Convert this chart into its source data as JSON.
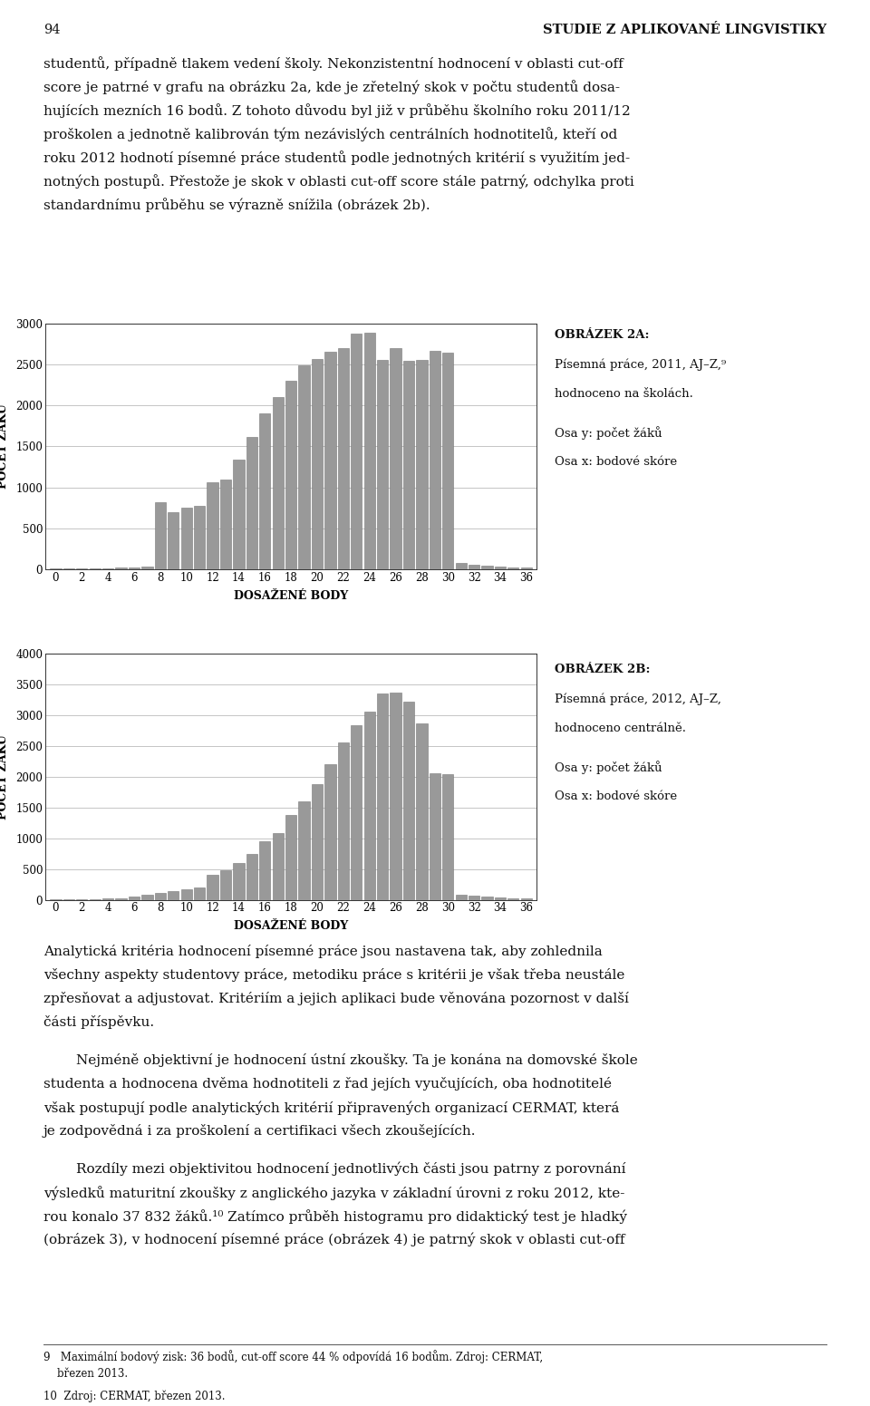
{
  "page_number": "94",
  "page_header": "STUDIE Z APLIKOVANÉ LINGVISTIKY",
  "para1": [
    "studentů, případně tlakem vedení školy. Nekonzistentní hodnocení v oblasti cut-off",
    "score je patrné v grafu na obrázku 2a, kde je zřetelný skok v počtu studentů dosa-",
    "hujících mezních 16 bodů. Z tohoto důvodu byl již v průběhu školního roku 2011/12",
    "proškolen a jednotně kalibrován tým nezávislých centrálních hodnotitelů, kteří od",
    "roku 2012 hodnotí písemné práce studentů podle jednotných kritérií s využitím jed-",
    "notných postupů. Přestože je skok v oblasti cut-off score stále patrný, odchylka proti",
    "standardnímu průběhu se výrazně snížila (obrázek 2b)."
  ],
  "chart1_label_bold": "OBRÁZEK 2A:",
  "chart1_label_lines": [
    "Písemná práce, 2011, AJ–Z,⁹",
    "hodnoceno na školách.",
    "Osa y: počet žáků",
    "Osa x: bodové skóre"
  ],
  "chart1_ylabel": "POČET ŽÁKŮ",
  "chart1_xlabel": "DOSAŽENÉ BODY",
  "chart1_ylim": [
    0,
    3000
  ],
  "chart1_yticks": [
    0,
    500,
    1000,
    1500,
    2000,
    2500,
    3000
  ],
  "chart1_xticks": [
    0,
    2,
    4,
    6,
    8,
    10,
    12,
    14,
    16,
    18,
    20,
    22,
    24,
    26,
    28,
    30,
    32,
    34,
    36
  ],
  "chart1_values": [
    8,
    8,
    8,
    12,
    18,
    22,
    28,
    38,
    820,
    700,
    755,
    780,
    1060,
    1100,
    1340,
    1620,
    1900,
    2100,
    2300,
    2490,
    2570,
    2650,
    2700,
    2870,
    2890,
    2550,
    2700,
    2545,
    2550,
    2660,
    2640,
    82,
    60,
    50,
    40,
    28,
    22
  ],
  "chart2_label_bold": "OBRÁZEK 2B:",
  "chart2_label_lines": [
    "Písemná práce, 2012, AJ–Z,",
    "hodnoceno centrálně.",
    "Osa y: počet žáků",
    "Osa x: bodové skóre"
  ],
  "chart2_ylabel": "POČET ŽÁKŮ",
  "chart2_xlabel": "DOSAŽENÉ BODY",
  "chart2_ylim": [
    0,
    4000
  ],
  "chart2_yticks": [
    0,
    500,
    1000,
    1500,
    2000,
    2500,
    3000,
    3500,
    4000
  ],
  "chart2_xticks": [
    0,
    2,
    4,
    6,
    8,
    10,
    12,
    14,
    16,
    18,
    20,
    22,
    24,
    26,
    28,
    30,
    32,
    34,
    36
  ],
  "chart2_values": [
    8,
    8,
    8,
    12,
    18,
    28,
    48,
    78,
    118,
    148,
    175,
    198,
    405,
    478,
    598,
    748,
    948,
    1078,
    1375,
    1598,
    1878,
    2198,
    2555,
    2838,
    3058,
    3348,
    3368,
    3225,
    2865,
    2065,
    2048,
    88,
    68,
    48,
    38,
    28,
    18
  ],
  "para2": [
    "Analytická kritéria hodnocení písemné práce jsou nastavena tak, aby zohlednila",
    "všechny aspekty studentovy práce, metodiku práce s kritérii je však třeba neustále",
    "zpřesňovat a adjustovat. Kritériím a jejich aplikaci bude věnována pozornost v další",
    "části příspěvku."
  ],
  "para3": [
    "Nejméně objektivní je hodnocení ústní zkoušky. Ta je konána na domovské škole",
    "studenta a hodnocena dvěma hodnotiteli z řad jejích vyučujících, oba hodnotitelé",
    "však postupují podle analytických kritérií připravených organizací CERMAT, která",
    "je zodpovědná i za proškolení a certifikaci všech zkoušejících."
  ],
  "para4": [
    "Rozdíly mezi objektivitou hodnocení jednotlivých části jsou patrny z porovnání",
    "výsledků maturitní zkoušky z anglického jazyka v základní úrovni z roku 2012, kte-",
    "rou konalo 37 832 žáků.¹⁰ Zatímco průběh histogramu pro didaktický test je hladký",
    "(obrázek 3), v hodnocení písemné práce (obrázek 4) je patrný skok v oblasti cut-off"
  ],
  "footnote1": [
    "9   Maximální bodový zisk: 36 bodů, cut-off score 44 % odpovídá 16 bodům. Zdroj: CERMAT,",
    "    březen 2013."
  ],
  "footnote2": [
    "10  Zdroj: CERMAT, březen 2013."
  ],
  "bg_color": "#ffffff",
  "text_color": "#111111",
  "bar_color": "#999999",
  "bar_edge_color": "#777777",
  "grid_color": "#bbbbbb",
  "spine_color": "#333333"
}
